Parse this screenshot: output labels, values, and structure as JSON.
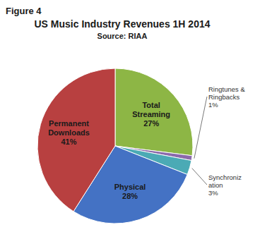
{
  "chart_data": {
    "type": "pie",
    "title": "US Music Industry Revenues 1H 2014",
    "subtitle": "Source: RIAA",
    "annotations": [
      "Figure 4"
    ],
    "categories": [
      "Total\nStreaming",
      "Ringtunes &\nRingbacks",
      "Synchroniz\nation",
      "Physical",
      "Permanent\nDownloads"
    ],
    "values": [
      27,
      1,
      3,
      28,
      41
    ],
    "value_labels": [
      "27%",
      "1%",
      "3%",
      "28%",
      "41%"
    ],
    "colors": [
      "#8db645",
      "#8b6aab",
      "#4baab5",
      "#4472c4",
      "#b84040"
    ],
    "data_labels": true
  }
}
